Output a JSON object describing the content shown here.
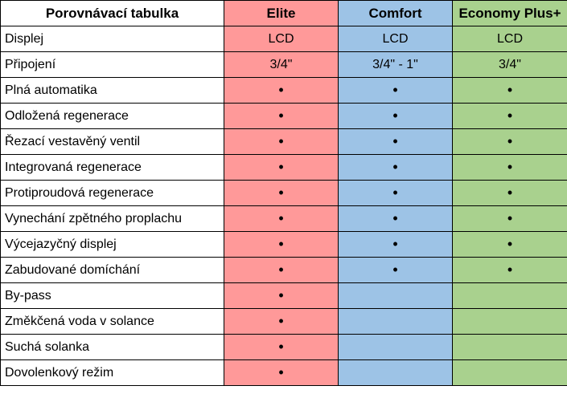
{
  "table": {
    "header": {
      "label": "Porovnávací tabulka",
      "columns": [
        "Elite",
        "Comfort",
        "Economy Plus+"
      ]
    },
    "colors": {
      "elite": "#ff9999",
      "comfort": "#9dc3e6",
      "economy": "#a9d18e"
    },
    "rows": [
      {
        "label": "Displej",
        "values": [
          "LCD",
          "LCD",
          "LCD"
        ]
      },
      {
        "label": "Připojení",
        "values": [
          "3/4\"",
          "3/4\" - 1\"",
          "3/4\""
        ]
      },
      {
        "label": "Plná automatika",
        "values": [
          "•",
          "•",
          "•"
        ]
      },
      {
        "label": "Odložená regenerace",
        "values": [
          "•",
          "•",
          "•"
        ]
      },
      {
        "label": "Řezací vestavěný ventil",
        "values": [
          "•",
          "•",
          "•"
        ]
      },
      {
        "label": "Integrovaná regenerace",
        "values": [
          "•",
          "•",
          "•"
        ]
      },
      {
        "label": "Protiproudová regenerace",
        "values": [
          "•",
          "•",
          "•"
        ]
      },
      {
        "label": "Vynechání zpětného proplachu",
        "values": [
          "•",
          "•",
          "•"
        ]
      },
      {
        "label": "Výcejazyčný displej",
        "values": [
          "•",
          "•",
          "•"
        ]
      },
      {
        "label": "Zabudované domíchání",
        "values": [
          "•",
          "•",
          "•"
        ]
      },
      {
        "label": "By-pass",
        "values": [
          "•",
          "",
          ""
        ]
      },
      {
        "label": "Změkčená voda v solance",
        "values": [
          "•",
          "",
          ""
        ]
      },
      {
        "label": "Suchá solanka",
        "values": [
          "•",
          "",
          ""
        ]
      },
      {
        "label": "Dovolenkový režim",
        "values": [
          "•",
          "",
          ""
        ]
      }
    ]
  }
}
